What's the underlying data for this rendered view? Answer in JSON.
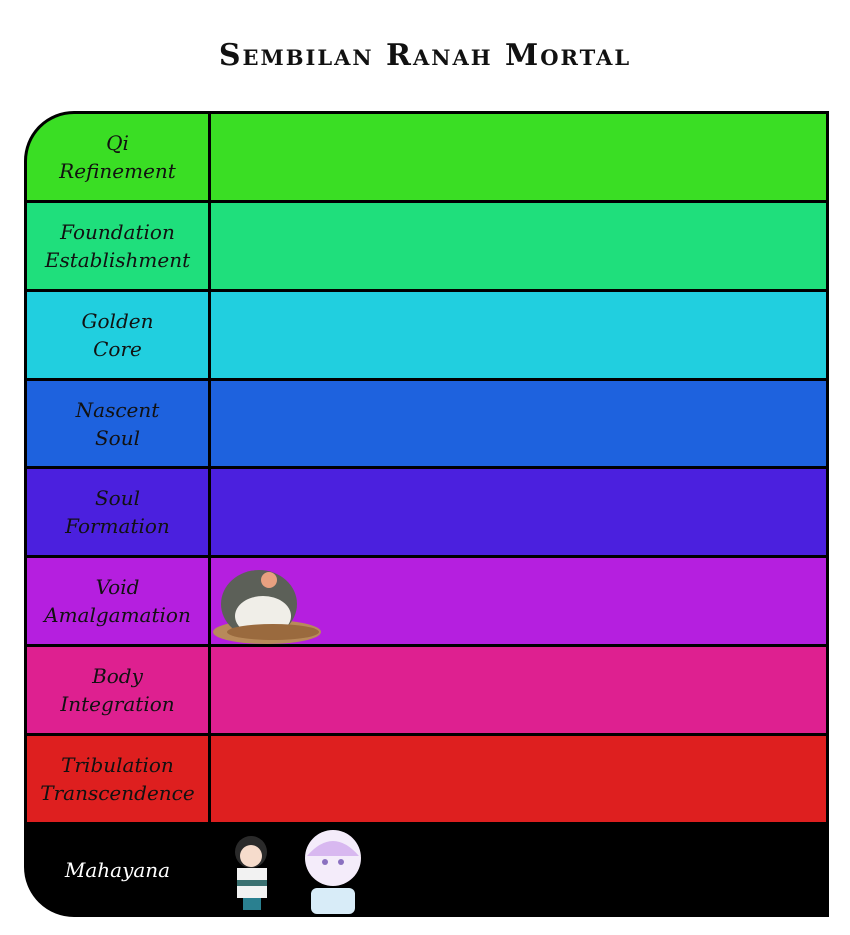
{
  "title": "Sembilan Ranah Mortal",
  "tiers": [
    {
      "label": "Qi\nRefinement",
      "color": "#3ade24",
      "items": []
    },
    {
      "label": "Foundation\nEstablishment",
      "color": "#1fdf7c",
      "items": []
    },
    {
      "label": "Golden\nCore",
      "color": "#21cfdf",
      "items": []
    },
    {
      "label": "Nascent\nSoul",
      "color": "#1e62de",
      "items": []
    },
    {
      "label": "Soul\nFormation",
      "color": "#4b20de",
      "items": []
    },
    {
      "label": "Void\nAmalgamation",
      "color": "#b51fdf",
      "items": [
        "bird-in-nest"
      ]
    },
    {
      "label": "Body\nIntegration",
      "color": "#de2090",
      "items": []
    },
    {
      "label": "Tribulation\nTranscendence",
      "color": "#de1f1f",
      "items": []
    },
    {
      "label": "Mahayana",
      "color": "#000000",
      "label_color": "#ffffff",
      "items": [
        "dark-haired-chibi",
        "white-haired-chibi"
      ]
    }
  ]
}
